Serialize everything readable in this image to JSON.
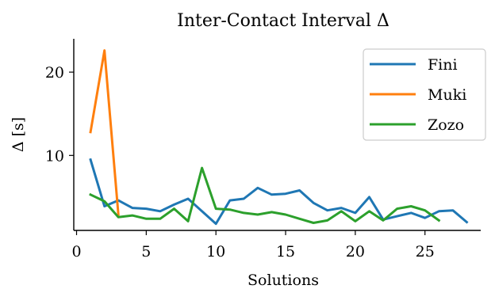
{
  "chart_data": {
    "type": "line",
    "title": "Inter-Contact Interval Δ",
    "xlabel": "Solutions",
    "ylabel": "Δ [s]",
    "xlim": [
      -0.2,
      29
    ],
    "ylim": [
      1,
      24
    ],
    "xticks": [
      0,
      5,
      10,
      15,
      20,
      25
    ],
    "yticks": [
      10,
      20
    ],
    "grid": false,
    "legend_position": "top-right",
    "series": [
      {
        "name": "Fini",
        "color": "#1f77b4",
        "x": [
          1,
          2,
          3,
          4,
          5,
          6,
          7,
          8,
          9,
          10,
          11,
          12,
          13,
          14,
          15,
          16,
          17,
          18,
          19,
          20,
          21,
          22,
          23,
          24,
          25,
          26,
          27,
          28
        ],
        "y": [
          9.5,
          3.9,
          4.6,
          3.7,
          3.6,
          3.3,
          4.1,
          4.8,
          3.3,
          1.8,
          4.6,
          4.8,
          6.1,
          5.3,
          5.4,
          5.8,
          4.3,
          3.4,
          3.7,
          3.1,
          5.0,
          2.3,
          2.7,
          3.1,
          2.5,
          3.3,
          3.4,
          2.0
        ]
      },
      {
        "name": "Muki",
        "color": "#ff7f0e",
        "x": [
          1,
          2,
          3
        ],
        "y": [
          12.8,
          22.6,
          2.9
        ]
      },
      {
        "name": "Zozo",
        "color": "#2ca02c",
        "x": [
          1,
          2,
          3,
          4,
          5,
          6,
          7,
          8,
          9,
          10,
          11,
          12,
          13,
          14,
          15,
          16,
          17,
          18,
          19,
          20,
          21,
          22,
          23,
          24,
          25,
          26
        ],
        "y": [
          5.3,
          4.5,
          2.6,
          2.8,
          2.4,
          2.4,
          3.6,
          2.1,
          8.5,
          3.6,
          3.5,
          3.1,
          2.9,
          3.2,
          2.9,
          2.4,
          1.9,
          2.2,
          3.3,
          2.1,
          3.3,
          2.2,
          3.6,
          3.9,
          3.4,
          2.2
        ]
      }
    ]
  }
}
